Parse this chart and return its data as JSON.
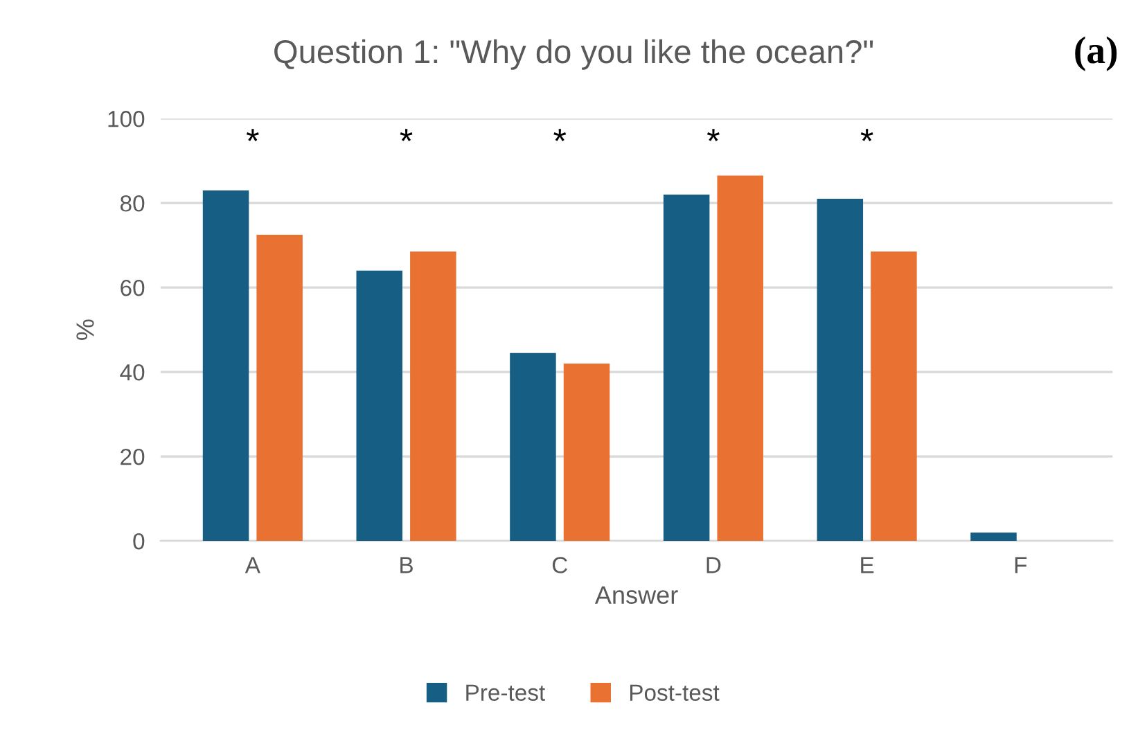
{
  "chart_data": {
    "type": "bar",
    "title": "Question 1: \"Why do you like the ocean?\"",
    "xlabel": "Answer",
    "ylabel": "%",
    "categories": [
      "A",
      "B",
      "C",
      "D",
      "E",
      "F"
    ],
    "series": [
      {
        "name": "Pre-test",
        "color": "#175e84",
        "values": [
          83,
          64,
          44.5,
          82,
          81,
          2
        ]
      },
      {
        "name": "Post-test",
        "color": "#e97132",
        "values": [
          72.5,
          68.5,
          42,
          86.5,
          68.5,
          null
        ]
      }
    ],
    "ylim": [
      0,
      100
    ],
    "yticks": [
      0,
      20,
      40,
      60,
      80,
      100
    ],
    "grid": "y",
    "legend": "bottom",
    "annotations": [
      "*",
      "*",
      "*",
      "*",
      "*",
      "(a)"
    ]
  }
}
